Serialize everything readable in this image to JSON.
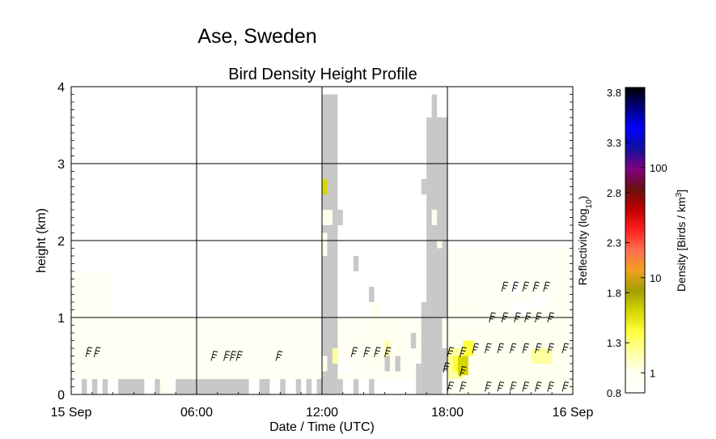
{
  "chart_data": {
    "type": "heatmap",
    "suptitle": "Ase, Sweden",
    "title": "Bird Density Height Profile",
    "xlabel": "Date / Time (UTC)",
    "ylabel": "height (km)",
    "x_range_hours": [
      0,
      24
    ],
    "ylim": [
      0,
      4
    ],
    "x_ticks": [
      {
        "hour": 0,
        "label": "15 Sep"
      },
      {
        "hour": 6,
        "label": "06:00"
      },
      {
        "hour": 12,
        "label": "12:00"
      },
      {
        "hour": 18,
        "label": "18:00"
      },
      {
        "hour": 24,
        "label": "16 Sep"
      }
    ],
    "y_ticks": [
      {
        "value": 0,
        "label": "0"
      },
      {
        "value": 1,
        "label": "1"
      },
      {
        "value": 2,
        "label": "2"
      },
      {
        "value": 3,
        "label": "3"
      },
      {
        "value": 4,
        "label": "4"
      }
    ],
    "grid": true,
    "colorbar": {
      "label_left": "Reflectivity (log",
      "label_left_sub": "10",
      "label_left_end": ")",
      "label_right": "Density [Birds / km",
      "label_right_sup": "3",
      "label_right_end": "]",
      "reflectivity_range": [
        0.8,
        3.85
      ],
      "reflectivity_ticks": [
        "0.8",
        "1.3",
        "1.8",
        "2.3",
        "2.8",
        "3.3",
        "3.8"
      ],
      "density_ticks": [
        {
          "label": "1",
          "reflectivity": 1.0
        },
        {
          "label": "10",
          "reflectivity": 1.95
        },
        {
          "label": "100",
          "reflectivity": 3.05
        }
      ],
      "colors": [
        "#ffffff",
        "#fffff0",
        "#ffffa0",
        "#ffff40",
        "#d6d600",
        "#a0a000",
        "#f0a020",
        "#ff7050",
        "#ff2020",
        "#c00000",
        "#6a1010",
        "#800080",
        "#1010a0",
        "#0000ff",
        "#000080",
        "#000000"
      ]
    },
    "no_data_color": "#c8c8c8",
    "cells": [
      {
        "x0": 0.5,
        "x1": 0.75,
        "y0": 0,
        "y1": 0.2,
        "v": "nd"
      },
      {
        "x0": 1.0,
        "x1": 1.25,
        "y0": 0,
        "y1": 0.2,
        "v": "nd"
      },
      {
        "x0": 1.5,
        "x1": 1.75,
        "y0": 0,
        "y1": 0.2,
        "v": "nd"
      },
      {
        "x0": 2.25,
        "x1": 3.5,
        "y0": 0,
        "y1": 0.2,
        "v": "nd"
      },
      {
        "x0": 4.0,
        "x1": 4.25,
        "y0": 0,
        "y1": 0.2,
        "v": "nd"
      },
      {
        "x0": 4.25,
        "x1": 4.75,
        "y0": 0,
        "y1": 0.2,
        "v": 1.1
      },
      {
        "x0": 5.0,
        "x1": 8.5,
        "y0": 0,
        "y1": 0.2,
        "v": "nd"
      },
      {
        "x0": 9.0,
        "x1": 9.5,
        "y0": 0,
        "y1": 0.2,
        "v": "nd"
      },
      {
        "x0": 10.0,
        "x1": 10.25,
        "y0": 0,
        "y1": 0.2,
        "v": "nd"
      },
      {
        "x0": 10.75,
        "x1": 11.0,
        "y0": 0,
        "y1": 0.2,
        "v": "nd"
      },
      {
        "x0": 11.25,
        "x1": 11.5,
        "y0": 0,
        "y1": 0.2,
        "v": "nd"
      },
      {
        "x0": 11.75,
        "x1": 12.0,
        "y0": 0,
        "y1": 0.2,
        "v": "nd"
      },
      {
        "x0": 12.0,
        "x1": 12.75,
        "y0": 0,
        "y1": 3.9,
        "v": "nd"
      },
      {
        "x0": 12.25,
        "x1": 12.5,
        "y0": 3.5,
        "y1": 3.7,
        "v": "nd"
      },
      {
        "x0": 12.0,
        "x1": 12.25,
        "y0": 2.6,
        "y1": 2.8,
        "v": 1.7
      },
      {
        "x0": 12.0,
        "x1": 12.5,
        "y0": 2.2,
        "y1": 2.4,
        "v": 1.1
      },
      {
        "x0": 12.0,
        "x1": 12.25,
        "y0": 1.8,
        "y1": 2.1,
        "v": 1.0
      },
      {
        "x0": 12.5,
        "x1": 12.75,
        "y0": 0.4,
        "y1": 0.6,
        "v": 1.35
      },
      {
        "x0": 12.0,
        "x1": 12.25,
        "y0": 0.3,
        "y1": 0.5,
        "v": 1.0
      },
      {
        "x0": 12.75,
        "x1": 13.0,
        "y0": 0,
        "y1": 0.2,
        "v": "nd"
      },
      {
        "x0": 13.5,
        "x1": 13.75,
        "y0": 0,
        "y1": 0.2,
        "v": "nd"
      },
      {
        "x0": 14.25,
        "x1": 14.5,
        "y0": 0,
        "y1": 0.2,
        "v": "nd"
      },
      {
        "x0": 12.75,
        "x1": 13.0,
        "y0": 2.2,
        "y1": 2.4,
        "v": "nd"
      },
      {
        "x0": 13.5,
        "x1": 13.75,
        "y0": 1.6,
        "y1": 1.8,
        "v": "nd"
      },
      {
        "x0": 14.25,
        "x1": 14.5,
        "y0": 1.2,
        "y1": 1.4,
        "v": "nd"
      },
      {
        "x0": 15.0,
        "x1": 15.25,
        "y0": 0.3,
        "y1": 0.5,
        "v": "nd"
      },
      {
        "x0": 15.5,
        "x1": 15.75,
        "y0": 0.3,
        "y1": 0.5,
        "v": "nd"
      },
      {
        "x0": 16.5,
        "x1": 16.75,
        "y0": 0,
        "y1": 0.4,
        "v": "nd"
      },
      {
        "x0": 16.75,
        "x1": 17.0,
        "y0": 1.0,
        "y1": 1.2,
        "v": "nd"
      },
      {
        "x0": 16.25,
        "x1": 16.5,
        "y0": 0.6,
        "y1": 0.8,
        "v": "nd"
      },
      {
        "x0": 17.0,
        "x1": 17.25,
        "y0": 0.6,
        "y1": 0.8,
        "v": "nd"
      },
      {
        "x0": 17.25,
        "x1": 17.5,
        "y0": 0.2,
        "y1": 0.4,
        "v": "nd"
      },
      {
        "x0": 16.75,
        "x1": 17.75,
        "y0": 0,
        "y1": 1.0,
        "v": "nd"
      },
      {
        "x0": 17.0,
        "x1": 18.0,
        "y0": 1.0,
        "y1": 3.6,
        "v": "nd"
      },
      {
        "x0": 16.75,
        "x1": 17.0,
        "y0": 2.6,
        "y1": 2.8,
        "v": "nd"
      },
      {
        "x0": 17.25,
        "x1": 17.5,
        "y0": 3.4,
        "y1": 3.9,
        "v": "nd"
      },
      {
        "x0": 17.25,
        "x1": 17.5,
        "y0": 2.2,
        "y1": 2.4,
        "v": 1.1
      },
      {
        "x0": 17.5,
        "x1": 17.75,
        "y0": 1.9,
        "y1": 2.0,
        "v": 1.0
      },
      {
        "x0": 17.5,
        "x1": 17.75,
        "y0": 1.3,
        "y1": 1.5,
        "v": "nd"
      },
      {
        "x0": 17.75,
        "x1": 18.0,
        "y0": 0.3,
        "y1": 0.6,
        "v": "nd"
      }
    ],
    "yellow_blobs": [
      {
        "x0": 13.75,
        "x1": 16.0,
        "y0": 0.4,
        "y1": 0.8,
        "v": 1.05
      },
      {
        "x0": 14.25,
        "x1": 15.5,
        "y0": 0.8,
        "y1": 1.0,
        "v": 1.02
      },
      {
        "x0": 14.25,
        "x1": 14.75,
        "y0": 1.0,
        "y1": 1.2,
        "v": 1.0
      },
      {
        "x0": 14.5,
        "x1": 15.0,
        "y0": 0.6,
        "y1": 0.9,
        "v": 1.1
      },
      {
        "x0": 15.0,
        "x1": 15.25,
        "y0": 0.5,
        "y1": 0.7,
        "v": 1.2
      },
      {
        "x0": 12.75,
        "x1": 13.25,
        "y0": 0.3,
        "y1": 0.5,
        "v": 0.95
      },
      {
        "x0": 13.75,
        "x1": 14.0,
        "y0": 0.2,
        "y1": 0.4,
        "v": 0.95
      },
      {
        "x0": 11.75,
        "x1": 12.0,
        "y0": 0.3,
        "y1": 0.4,
        "v": 1.0
      },
      {
        "x0": 18.0,
        "x1": 24.0,
        "y0": 0.05,
        "y1": 0.8,
        "v": 1.0
      },
      {
        "x0": 18.0,
        "x1": 20.0,
        "y0": 0.0,
        "y1": 0.8,
        "v": 1.15
      },
      {
        "x0": 18.0,
        "x1": 18.75,
        "y0": 0.2,
        "y1": 0.6,
        "v": 1.3
      },
      {
        "x0": 18.25,
        "x1": 18.5,
        "y0": 0.3,
        "y1": 0.5,
        "v": 1.45
      },
      {
        "x0": 18.5,
        "x1": 19.0,
        "y0": 0.25,
        "y1": 0.5,
        "v": 1.7
      },
      {
        "x0": 18.75,
        "x1": 19.25,
        "y0": 0.5,
        "y1": 0.7,
        "v": 1.4
      },
      {
        "x0": 21.5,
        "x1": 22.75,
        "y0": 0.3,
        "y1": 0.7,
        "v": 1.15
      },
      {
        "x0": 20.75,
        "x1": 23.75,
        "y0": 0.8,
        "y1": 1.1,
        "v": 1.0
      },
      {
        "x0": 22.0,
        "x1": 23.0,
        "y0": 0.4,
        "y1": 0.6,
        "v": 1.3
      },
      {
        "x0": 18.25,
        "x1": 19.0,
        "y0": 1.0,
        "y1": 1.2,
        "v": 1.05
      },
      {
        "x0": 21.0,
        "x1": 22.0,
        "y0": 1.0,
        "y1": 1.2,
        "v": 0.98
      },
      {
        "x0": 22.0,
        "x1": 22.75,
        "y0": 1.1,
        "y1": 1.3,
        "v": 0.98
      },
      {
        "x0": 21.0,
        "x1": 21.5,
        "y0": 1.3,
        "y1": 1.5,
        "v": 0.97
      }
    ],
    "faint_haze": [
      {
        "x0": 0.0,
        "x1": 24.0,
        "y0": 0.2,
        "y1": 1.0
      },
      {
        "x0": 0.0,
        "x1": 2.0,
        "y0": 1.0,
        "y1": 1.6
      },
      {
        "x0": 18.0,
        "x1": 24.0,
        "y0": 1.0,
        "y1": 1.9
      }
    ],
    "wind_barbs": [
      {
        "h": 0.7,
        "y": 0.55
      },
      {
        "h": 1.1,
        "y": 0.55
      },
      {
        "h": 6.7,
        "y": 0.5
      },
      {
        "h": 7.3,
        "y": 0.5
      },
      {
        "h": 7.6,
        "y": 0.5
      },
      {
        "h": 7.9,
        "y": 0.5
      },
      {
        "h": 9.8,
        "y": 0.5
      },
      {
        "h": 13.4,
        "y": 0.55
      },
      {
        "h": 14.0,
        "y": 0.55
      },
      {
        "h": 14.5,
        "y": 0.55
      },
      {
        "h": 15.0,
        "y": 0.55
      },
      {
        "h": 18.0,
        "y": 0.55
      },
      {
        "h": 18.6,
        "y": 0.55
      },
      {
        "h": 19.2,
        "y": 0.6
      },
      {
        "h": 19.8,
        "y": 0.6
      },
      {
        "h": 20.4,
        "y": 0.6
      },
      {
        "h": 21.0,
        "y": 0.6
      },
      {
        "h": 21.6,
        "y": 0.6
      },
      {
        "h": 22.2,
        "y": 0.6
      },
      {
        "h": 22.8,
        "y": 0.6
      },
      {
        "h": 23.5,
        "y": 0.6
      },
      {
        "h": 18.6,
        "y": 0.3
      },
      {
        "h": 18.0,
        "y": 0.1
      },
      {
        "h": 18.6,
        "y": 0.1
      },
      {
        "h": 19.8,
        "y": 0.1
      },
      {
        "h": 20.4,
        "y": 0.1
      },
      {
        "h": 21.0,
        "y": 0.1
      },
      {
        "h": 21.6,
        "y": 0.1
      },
      {
        "h": 22.2,
        "y": 0.1
      },
      {
        "h": 22.8,
        "y": 0.1
      },
      {
        "h": 23.5,
        "y": 0.1
      },
      {
        "h": 17.8,
        "y": 0.35
      },
      {
        "h": 20.0,
        "y": 1.0
      },
      {
        "h": 20.6,
        "y": 1.0
      },
      {
        "h": 21.2,
        "y": 1.0
      },
      {
        "h": 21.7,
        "y": 1.0
      },
      {
        "h": 22.2,
        "y": 1.0
      },
      {
        "h": 22.8,
        "y": 1.0
      },
      {
        "h": 20.6,
        "y": 1.4
      },
      {
        "h": 21.1,
        "y": 1.4
      },
      {
        "h": 21.6,
        "y": 1.4
      },
      {
        "h": 22.1,
        "y": 1.4
      },
      {
        "h": 22.6,
        "y": 1.4
      }
    ]
  }
}
